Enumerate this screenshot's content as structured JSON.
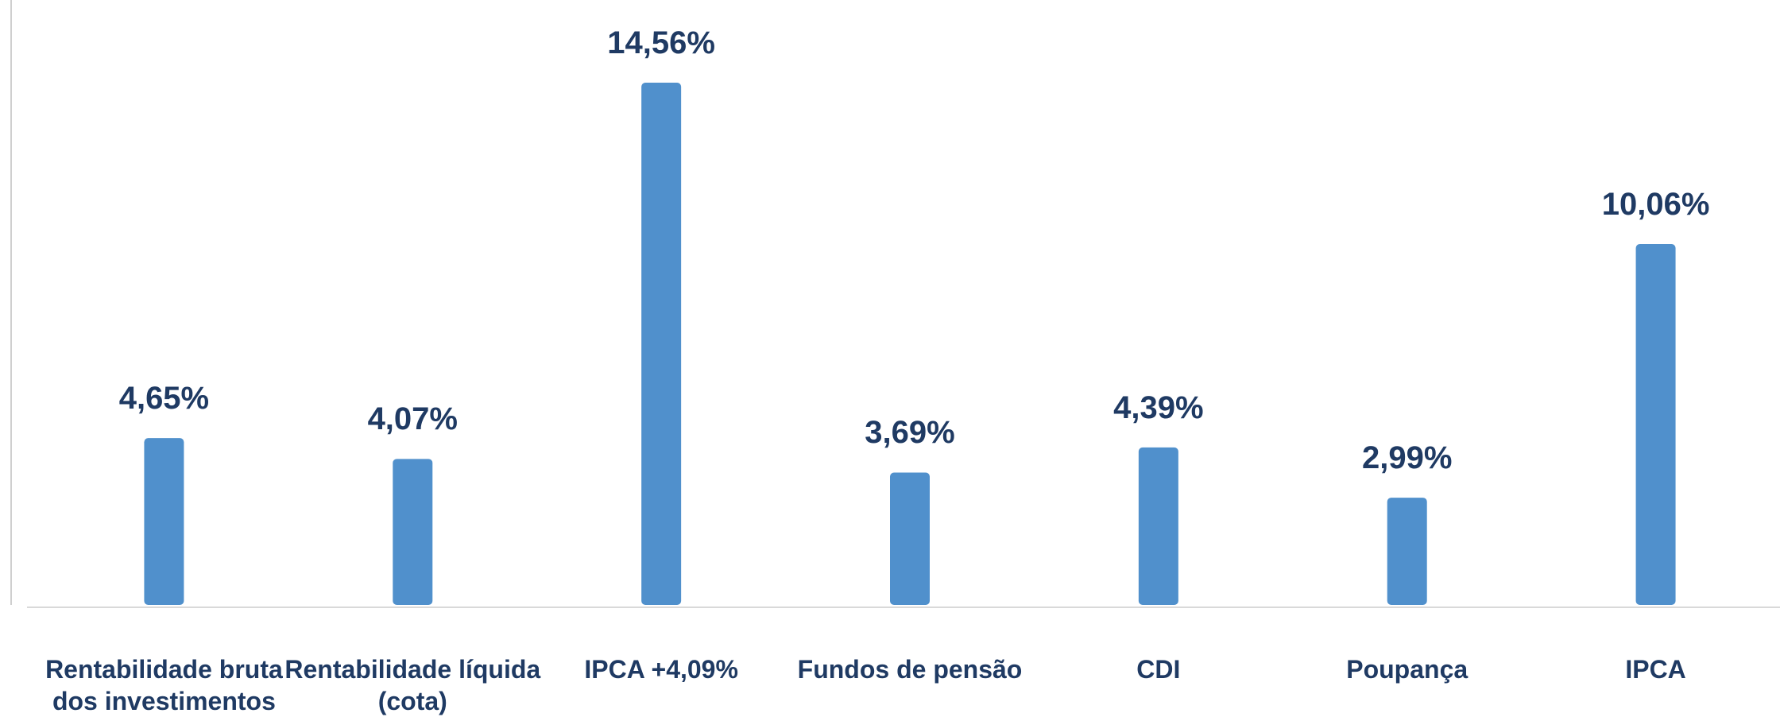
{
  "chart_data": {
    "type": "bar",
    "categories": [
      "Rentabilidade bruta dos investimentos",
      "Rentabilidade líquida (cota)",
      "IPCA +4,09%",
      "Fundos de pensão",
      "CDI",
      "Poupança",
      "IPCA"
    ],
    "values": [
      4.65,
      4.07,
      14.56,
      3.69,
      4.39,
      2.99,
      10.06
    ],
    "value_labels": [
      "4,65%",
      "4,07%",
      "14,56%",
      "3,69%",
      "4,39%",
      "2,99%",
      "10,06%"
    ],
    "color": "#5090cc"
  }
}
